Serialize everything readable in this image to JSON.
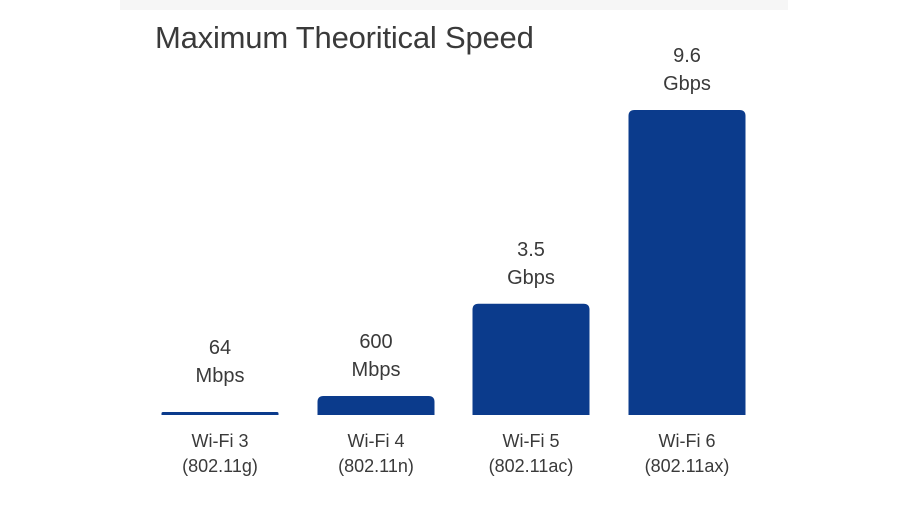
{
  "chart_data": {
    "type": "bar",
    "title": "Maximum Theoritical Speed",
    "categories": [
      {
        "line1": "Wi-Fi 3",
        "line2": "(802.11g)"
      },
      {
        "line1": "Wi-Fi 4",
        "line2": "(802.11n)"
      },
      {
        "line1": "Wi-Fi 5",
        "line2": "(802.11ac)"
      },
      {
        "line1": "Wi-Fi 6",
        "line2": "(802.11ax)"
      }
    ],
    "values_gbps": [
      0.064,
      0.6,
      3.5,
      9.6
    ],
    "data_labels": [
      {
        "line1": "64",
        "line2": "Mbps"
      },
      {
        "line1": "600",
        "line2": "Mbps"
      },
      {
        "line1": "3.5",
        "line2": "Gbps"
      },
      {
        "line1": "9.6",
        "line2": "Gbps"
      }
    ],
    "xlabel": "",
    "ylabel": "",
    "ylim": [
      0,
      9.6
    ],
    "grid": false,
    "legend": "none",
    "colors": {
      "bar": "#0b3b8c",
      "text": "#3a3a3a"
    }
  }
}
